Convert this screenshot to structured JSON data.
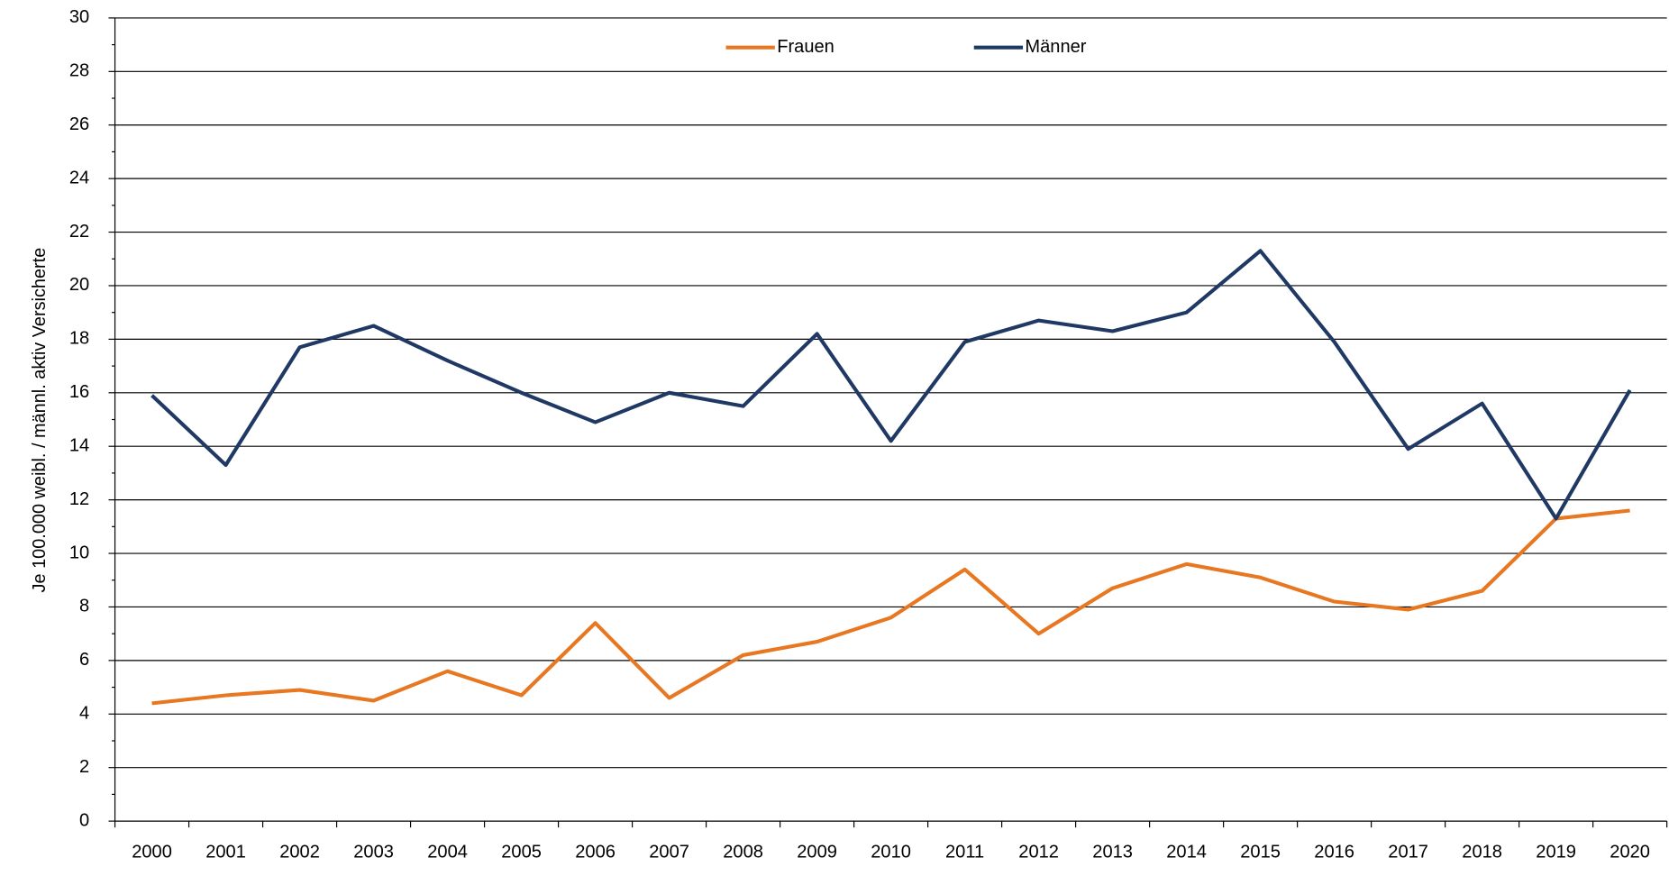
{
  "chart_data": {
    "type": "line",
    "ylabel": "Je 100.000 weibl. / männl. aktiv Versicherte",
    "categories": [
      "2000",
      "2001",
      "2002",
      "2003",
      "2004",
      "2005",
      "2006",
      "2007",
      "2008",
      "2009",
      "2010",
      "2011",
      "2012",
      "2013",
      "2014",
      "2015",
      "2016",
      "2017",
      "2018",
      "2019",
      "2020"
    ],
    "series": [
      {
        "name": "Frauen",
        "color": "#e87722",
        "values": [
          4.4,
          4.7,
          4.9,
          4.5,
          5.6,
          4.7,
          7.4,
          4.6,
          6.2,
          6.7,
          7.6,
          9.4,
          7.0,
          8.7,
          9.6,
          9.1,
          8.2,
          7.9,
          8.6,
          11.3,
          11.6
        ]
      },
      {
        "name": "Männer",
        "color": "#1f3864",
        "values": [
          15.9,
          13.3,
          17.7,
          18.5,
          17.2,
          16.0,
          14.9,
          16.0,
          15.5,
          18.2,
          14.2,
          17.9,
          18.7,
          18.3,
          19.0,
          21.3,
          17.9,
          13.9,
          15.6,
          11.3,
          16.1
        ]
      }
    ],
    "ylim": [
      0,
      30
    ],
    "yticks": [
      0,
      2,
      4,
      6,
      8,
      10,
      12,
      14,
      16,
      18,
      20,
      22,
      24,
      26,
      28,
      30
    ],
    "grid": true,
    "legend": "top"
  }
}
